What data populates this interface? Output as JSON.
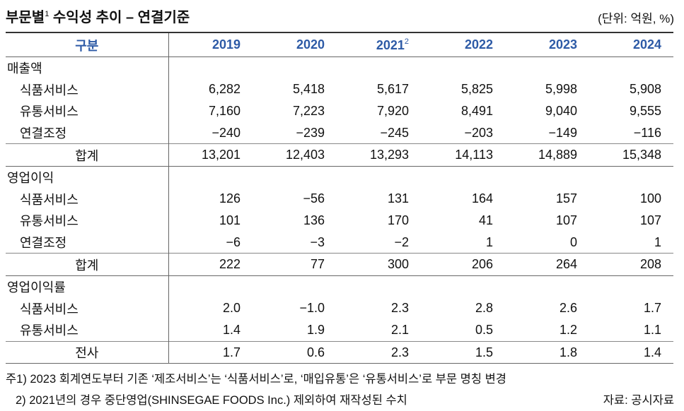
{
  "header": {
    "title": "부문별",
    "title_sup": "1",
    "title_rest": "수익성 추이 – 연결기준",
    "unit": "(단위: 억원, %)"
  },
  "table": {
    "columns": [
      {
        "label": "구분"
      },
      {
        "label": "2019"
      },
      {
        "label": "2020"
      },
      {
        "label": "2021",
        "sup": "2"
      },
      {
        "label": "2022"
      },
      {
        "label": "2023"
      },
      {
        "label": "2024"
      }
    ],
    "sections": [
      {
        "label": "매출액",
        "rows": [
          {
            "label": "식품서비스",
            "values": [
              "6,282",
              "5,418",
              "5,617",
              "5,825",
              "5,998",
              "5,908"
            ]
          },
          {
            "label": "유통서비스",
            "values": [
              "7,160",
              "7,223",
              "7,920",
              "8,491",
              "9,040",
              "9,555"
            ]
          },
          {
            "label": "연결조정",
            "values": [
              "−240",
              "−239",
              "−245",
              "−203",
              "−149",
              "−116"
            ]
          }
        ],
        "total": {
          "label": "합계",
          "values": [
            "13,201",
            "12,403",
            "13,293",
            "14,113",
            "14,889",
            "15,348"
          ]
        }
      },
      {
        "label": "영업이익",
        "rows": [
          {
            "label": "식품서비스",
            "values": [
              "126",
              "−56",
              "131",
              "164",
              "157",
              "100"
            ]
          },
          {
            "label": "유통서비스",
            "values": [
              "101",
              "136",
              "170",
              "41",
              "107",
              "107"
            ]
          },
          {
            "label": "연결조정",
            "values": [
              "−6",
              "−3",
              "−2",
              "1",
              "0",
              "1"
            ]
          }
        ],
        "total": {
          "label": "합계",
          "values": [
            "222",
            "77",
            "300",
            "206",
            "264",
            "208"
          ]
        }
      },
      {
        "label": "영업이익률",
        "rows": [
          {
            "label": "식품서비스",
            "values": [
              "2.0",
              "−1.0",
              "2.3",
              "2.8",
              "2.6",
              "1.7"
            ]
          },
          {
            "label": "유통서비스",
            "values": [
              "1.4",
              "1.9",
              "2.1",
              "0.5",
              "1.2",
              "1.1"
            ]
          }
        ],
        "total": {
          "label": "전사",
          "values": [
            "1.7",
            "0.6",
            "2.3",
            "1.5",
            "1.8",
            "1.4"
          ]
        }
      }
    ]
  },
  "notes": [
    "주1) 2023 회계연도부터 기존 ‘제조서비스’는 ‘식품서비스’로, ‘매입유통’은 ‘유통서비스’로 부문 명칭 변경",
    "2) 2021년의 경우 중단영업(SHINSEGAE FOODS Inc.) 제외하여 재작성된 수치"
  ],
  "source": "자료: 공시자료"
}
